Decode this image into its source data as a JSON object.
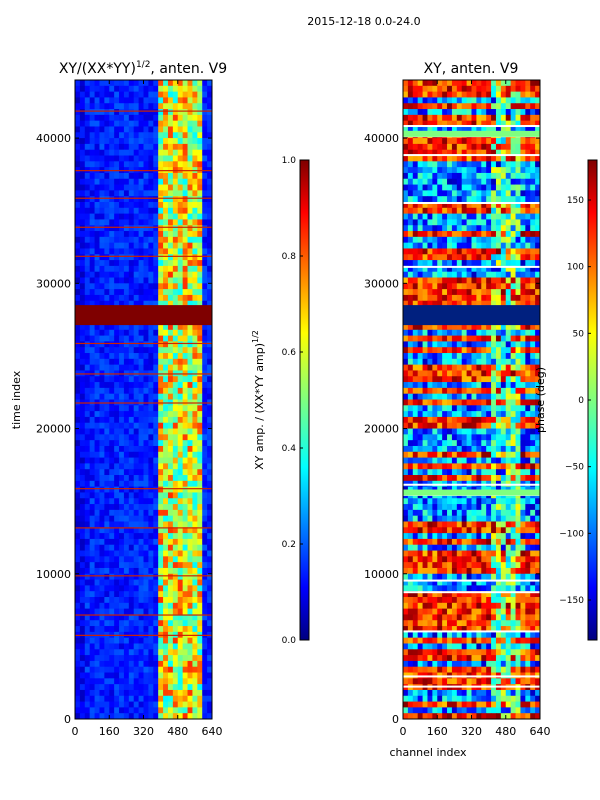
{
  "figure": {
    "suptitle": "2015-12-18 0.0-24.0"
  },
  "chart_data": [
    {
      "type": "heatmap",
      "title": "XY/(XX*YY)^{1/2}, anten. V9",
      "title_main": "XY/(XX*YY)",
      "title_sup": "1/2",
      "title_tail": ", anten. V9",
      "xlabel": "",
      "ylabel": "time index",
      "xlim": [
        0,
        640
      ],
      "ylim": [
        0,
        44000
      ],
      "xticks": [
        0,
        160,
        320,
        480,
        640
      ],
      "yticks": [
        0,
        10000,
        20000,
        30000,
        40000
      ],
      "colorbar": {
        "label": "XY amp. / (XX*YY amp)^{1/2}",
        "label_main": "XY amp. / (XX*YY amp)",
        "label_sup": "1/2",
        "range": [
          0.0,
          1.0
        ],
        "ticks": [
          "0.0",
          "0.2",
          "0.4",
          "0.6",
          "0.8",
          "1.0"
        ],
        "tick_values": [
          0.0,
          0.2,
          0.4,
          0.6,
          0.8,
          1.0
        ]
      }
    },
    {
      "type": "heatmap",
      "title": "XY, anten. V9",
      "xlabel": "channel index",
      "ylabel": "",
      "xlim": [
        0,
        640
      ],
      "ylim": [
        0,
        44000
      ],
      "xticks": [
        0,
        160,
        320,
        480,
        640
      ],
      "yticks": [
        0,
        10000,
        20000,
        30000,
        40000
      ],
      "colorbar": {
        "label": "phase (deg)",
        "range": [
          -180,
          180
        ],
        "ticks": [
          "−150",
          "−100",
          "−50",
          "0",
          "50",
          "100",
          "150"
        ],
        "tick_values": [
          -150,
          -100,
          -50,
          0,
          50,
          100,
          150
        ]
      }
    }
  ],
  "colors": {
    "jet": [
      "#00007f",
      "#0000ff",
      "#007fff",
      "#00ffff",
      "#7fff7f",
      "#ffff00",
      "#ff7f00",
      "#ff0000",
      "#7f0000"
    ]
  }
}
